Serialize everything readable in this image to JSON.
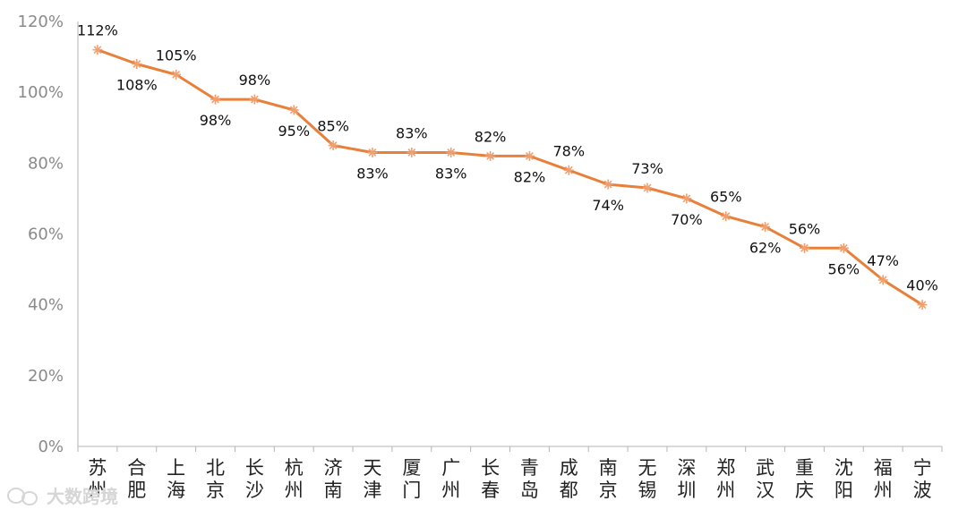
{
  "chart_data": {
    "type": "line",
    "title": "",
    "xlabel": "",
    "ylabel": "",
    "ylim": [
      0,
      120
    ],
    "yticks": [
      "0%",
      "20%",
      "40%",
      "60%",
      "80%",
      "100%",
      "120%"
    ],
    "grid": false,
    "categories": [
      "苏州",
      "合肥",
      "上海",
      "北京",
      "长沙",
      "杭州",
      "济南",
      "天津",
      "厦门",
      "广州",
      "长春",
      "青岛",
      "成都",
      "南京",
      "无锡",
      "深圳",
      "郑州",
      "武汉",
      "重庆",
      "沈阳",
      "福州",
      "宁波"
    ],
    "series": [
      {
        "values": [
          112,
          108,
          105,
          98,
          98,
          95,
          85,
          83,
          83,
          83,
          82,
          82,
          78,
          74,
          73,
          70,
          65,
          62,
          56,
          56,
          47,
          40
        ],
        "labels": [
          "112%",
          "108%",
          "105%",
          "98%",
          "98%",
          "95%",
          "85%",
          "83%",
          "83%",
          "83%",
          "82%",
          "82%",
          "78%",
          "74%",
          "73%",
          "70%",
          "65%",
          "62%",
          "56%",
          "56%",
          "47%",
          "40%"
        ],
        "color": "#E8803A"
      }
    ]
  },
  "watermark": {
    "text": "大数跨境",
    "icon": "wechat-logo-icon"
  }
}
